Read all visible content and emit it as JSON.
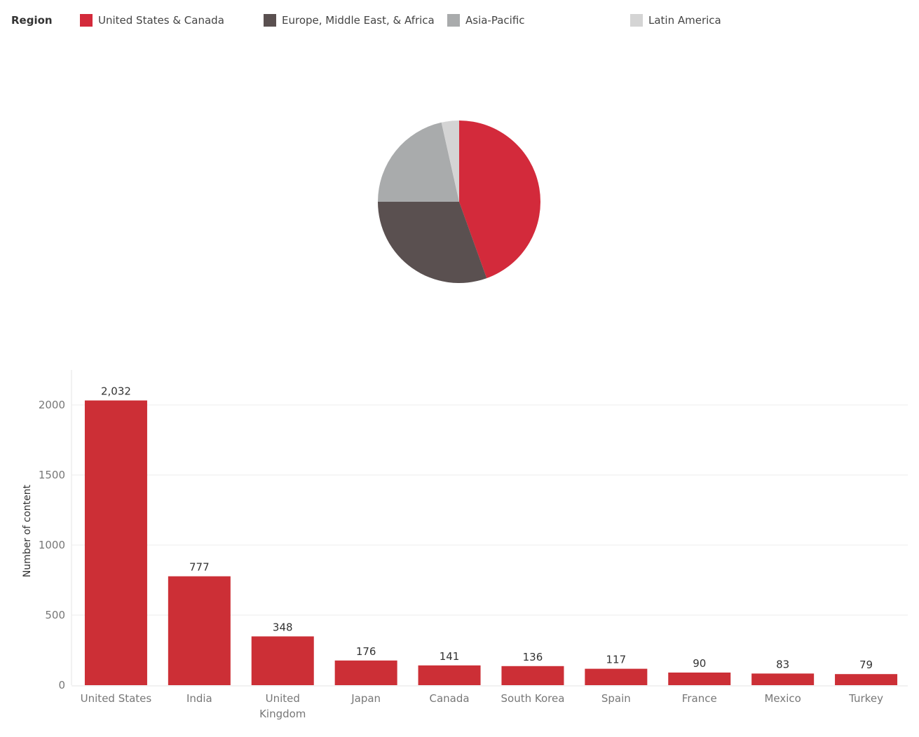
{
  "chart_data": [
    {
      "type": "pie",
      "legend_title": "Region",
      "legend_position": "top",
      "slices": [
        {
          "name": "United States & Canada",
          "value": 44.5,
          "color": "#d32a3b"
        },
        {
          "name": "Europe, Middle East, & Africa",
          "value": 30.5,
          "color": "#5a5050"
        },
        {
          "name": "Asia-Pacific",
          "value": 21.5,
          "color": "#a9abac"
        },
        {
          "name": "Latin America",
          "value": 3.5,
          "color": "#d4d4d4"
        }
      ]
    },
    {
      "type": "bar",
      "ylabel": "Number of content",
      "xlabel": "",
      "ylim": [
        0,
        2200
      ],
      "yticks": [
        0,
        500,
        1000,
        1500,
        2000
      ],
      "grid": true,
      "bar_color": "#cc2f36",
      "categories": [
        "United States",
        "India",
        "United Kingdom",
        "Japan",
        "Canada",
        "South Korea",
        "Spain",
        "France",
        "Mexico",
        "Turkey"
      ],
      "category_lines": [
        [
          "United States"
        ],
        [
          "India"
        ],
        [
          "United",
          "Kingdom"
        ],
        [
          "Japan"
        ],
        [
          "Canada"
        ],
        [
          "South Korea"
        ],
        [
          "Spain"
        ],
        [
          "France"
        ],
        [
          "Mexico"
        ],
        [
          "Turkey"
        ]
      ],
      "values": [
        2032,
        777,
        348,
        176,
        141,
        136,
        117,
        90,
        83,
        79
      ],
      "value_labels": [
        "2,032",
        "777",
        "348",
        "176",
        "141",
        "136",
        "117",
        "90",
        "83",
        "79"
      ]
    }
  ]
}
